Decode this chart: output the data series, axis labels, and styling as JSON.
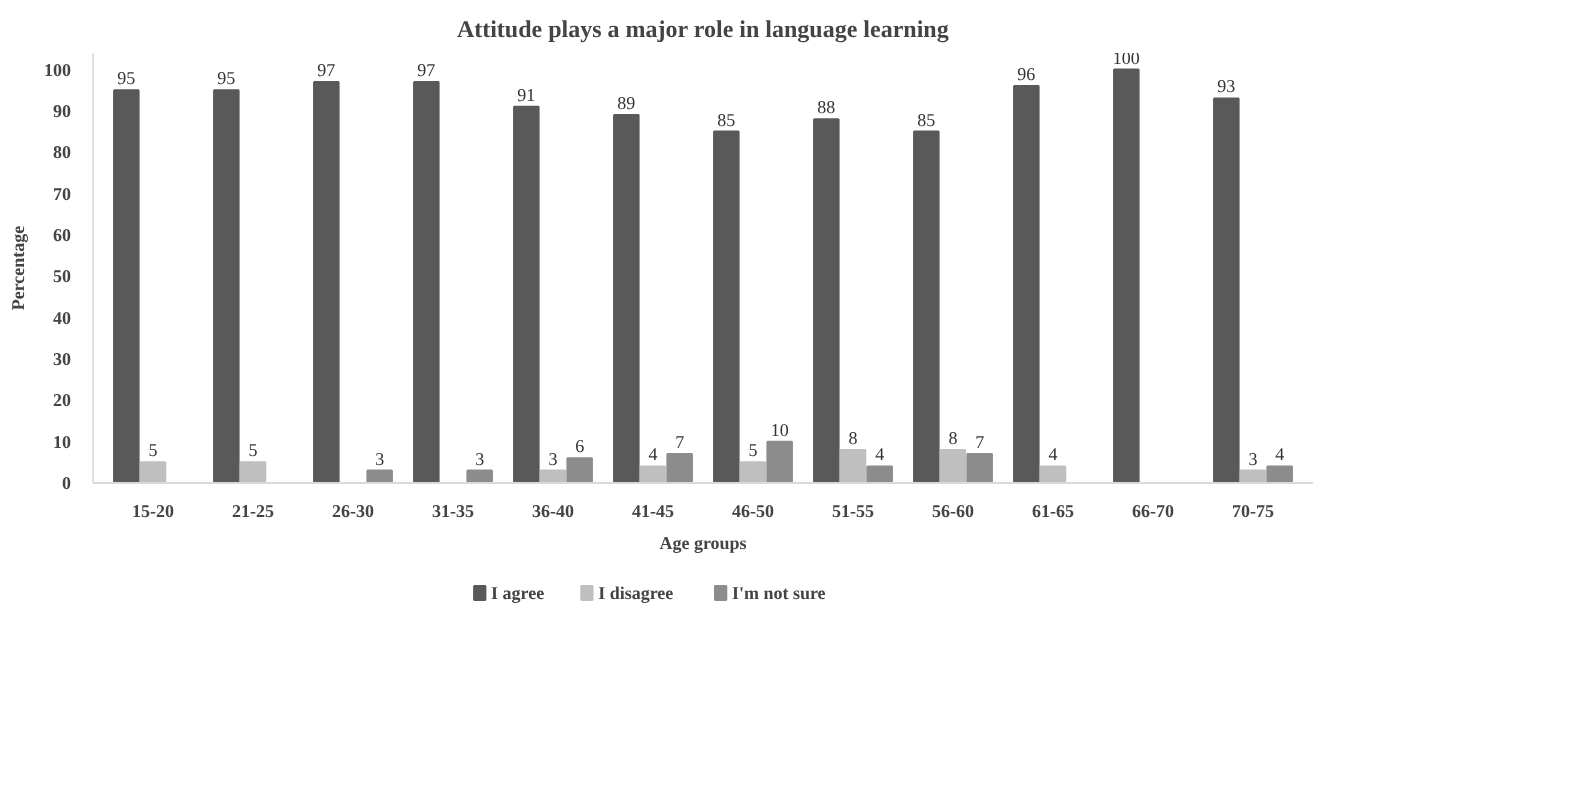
{
  "chart_data": {
    "type": "bar",
    "title": "Attitude plays a major role in language learning",
    "xlabel": "Age groups",
    "ylabel": "Percentage",
    "categories": [
      "15-20",
      "21-25",
      "26-30",
      "31-35",
      "36-40",
      "41-45",
      "46-50",
      "51-55",
      "56-60",
      "61-65",
      "66-70",
      "70-75"
    ],
    "series": [
      {
        "name": "I agree",
        "color": "#595959",
        "values": [
          95,
          95,
          97,
          97,
          91,
          89,
          85,
          88,
          85,
          96,
          100,
          93
        ]
      },
      {
        "name": "I disagree",
        "color": "#bfbfbf",
        "values": [
          5,
          5,
          null,
          null,
          3,
          4,
          5,
          8,
          8,
          4,
          null,
          3
        ]
      },
      {
        "name": "I'm not sure",
        "color": "#8c8c8c",
        "values": [
          null,
          null,
          3,
          3,
          6,
          7,
          10,
          4,
          7,
          null,
          null,
          4
        ]
      }
    ],
    "ylim": [
      0,
      104
    ],
    "yticks": [
      0,
      10,
      20,
      30,
      40,
      50,
      60,
      70,
      80,
      90,
      100
    ],
    "data_labels": true,
    "legend": "bottom",
    "grid": false
  }
}
